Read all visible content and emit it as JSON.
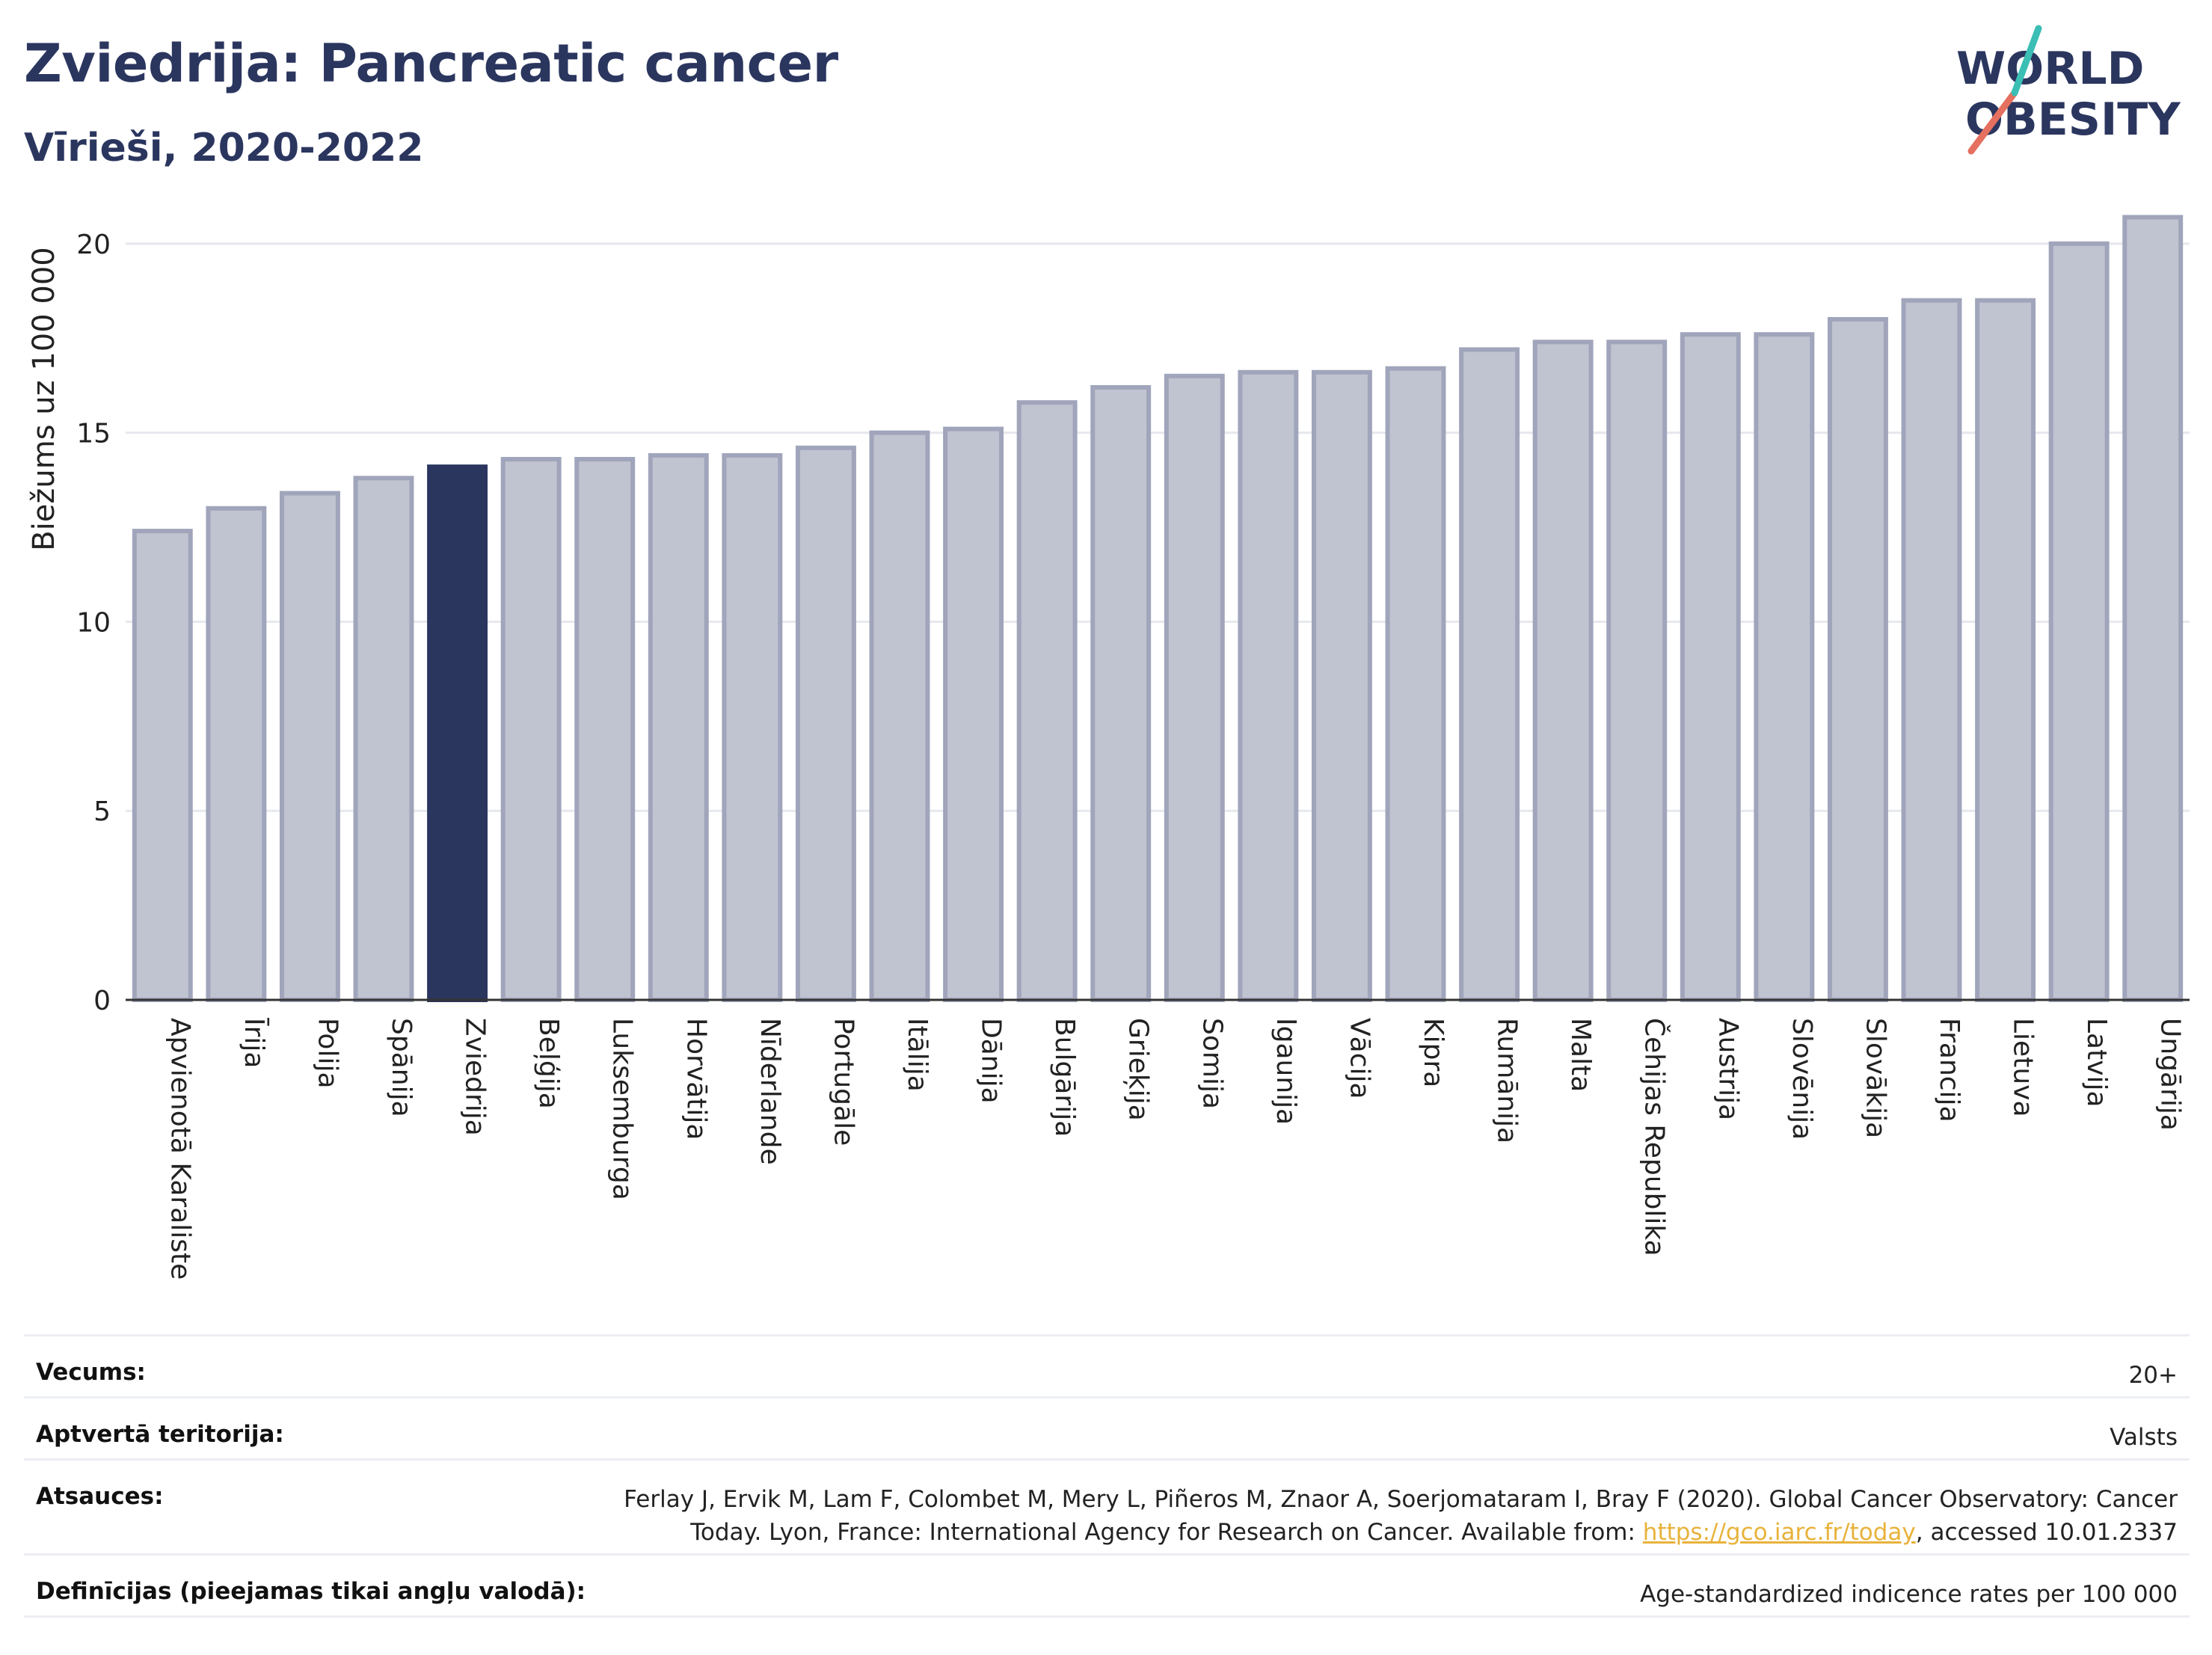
{
  "header": {
    "title": "Zviedrija: Pancreatic cancer",
    "subtitle": "Vīrieši, 2020-2022"
  },
  "logo": {
    "line1": "WORLD",
    "line2": "OBESITY"
  },
  "chart_data": {
    "type": "bar",
    "ylabel": "Biežums uz 100 000",
    "ylim": [
      0,
      21.5
    ],
    "yticks": [
      0,
      5,
      10,
      15,
      20
    ],
    "grid": true,
    "highlight": "Zviedrija",
    "categories": [
      "Apvienotā Karaliste",
      "Īrija",
      "Polija",
      "Spānija",
      "Zviedrija",
      "Beļģija",
      "Luksemburga",
      "Horvātija",
      "Nīderlande",
      "Portugāle",
      "Itālija",
      "Dānija",
      "Bulgārija",
      "Grieķija",
      "Somija",
      "Igaunija",
      "Vācija",
      "Kipra",
      "Rumānija",
      "Malta",
      "Čehijas Republika",
      "Austrija",
      "Slovēnija",
      "Slovākija",
      "Francija",
      "Lietuva",
      "Latvija",
      "Ungārija"
    ],
    "values": [
      12.4,
      13.0,
      13.4,
      13.8,
      14.1,
      14.3,
      14.3,
      14.4,
      14.4,
      14.6,
      15.0,
      15.1,
      15.8,
      16.2,
      16.5,
      16.6,
      16.6,
      16.7,
      17.2,
      17.4,
      17.4,
      17.6,
      17.6,
      18.0,
      18.5,
      18.5,
      20.0,
      20.7
    ],
    "colors": {
      "bar": "#c0c3d0",
      "bar_border": "#a0a5bb",
      "highlight": "#2b365f",
      "grid": "#e6e8ee",
      "axis": "#333333"
    }
  },
  "footer": {
    "rows": [
      {
        "label": "Vecums:",
        "value": "20+"
      },
      {
        "label": "Aptvertā teritorija:",
        "value": "Valsts"
      },
      {
        "label": "Atsauces:",
        "value_line1": "Ferlay J, Ervik M, Lam F, Colombet M, Mery L, Piñeros M, Znaor A, Soerjomataram I, Bray F (2020). Global Cancer Observatory: Cancer",
        "value_line2_pre": "Today. Lyon, France: International Agency for Research on Cancer. Available from: ",
        "link": "https://gco.iarc.fr/today",
        "value_line2_post": ", accessed 10.01.2337"
      },
      {
        "label": "Definīcijas (pieejamas tikai angļu valodā):",
        "value": "Age-standardized indicence rates per 100 000"
      }
    ]
  }
}
